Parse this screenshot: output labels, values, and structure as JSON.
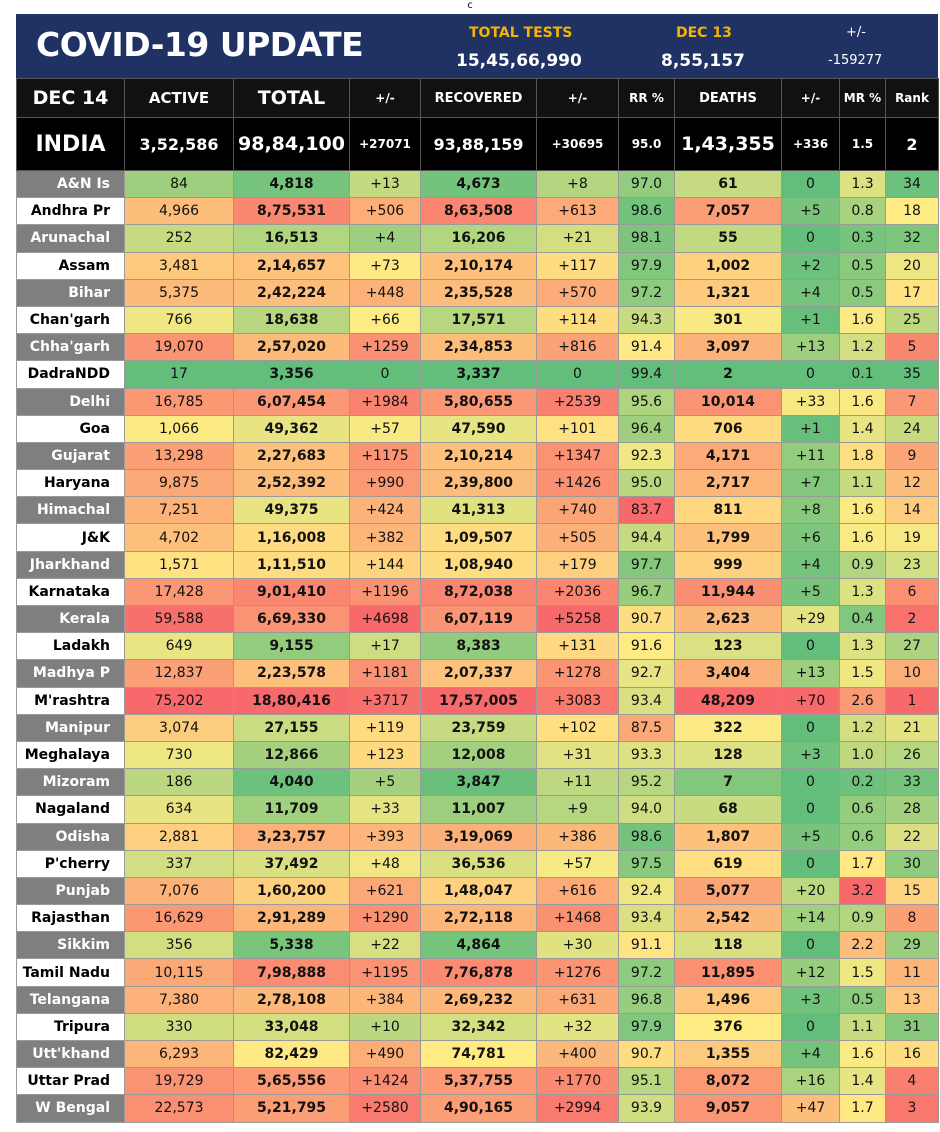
{
  "page_marker": "c",
  "banner": {
    "title": "COVID-19 UPDATE",
    "tests_label": "TOTAL TESTS",
    "tests_value": "15,45,66,990",
    "date_label": "DEC 13",
    "date_value": "8,55,157",
    "change_label": "+/-",
    "change_value": "-159277"
  },
  "header": {
    "date": "DEC 14",
    "active": "ACTIVE",
    "total": "TOTAL",
    "total_change": "+/-",
    "recovered": "RECOVERED",
    "recovered_change": "+/-",
    "rr": "RR %",
    "deaths": "DEATHS",
    "deaths_change": "+/-",
    "mr": "MR %",
    "rank": "Rank"
  },
  "india": {
    "name": "INDIA",
    "active": "3,52,586",
    "total": "98,84,100",
    "total_change": "+27071",
    "recovered": "93,88,159",
    "recovered_change": "+30695",
    "rr": "95.0",
    "deaths": "1,43,355",
    "deaths_change": "+336",
    "mr": "1.5",
    "rank": "2"
  },
  "colors": {
    "banner_bg": "#1f3263",
    "header_bg": "#111111",
    "accent_yellow": "#f4b400",
    "accent_green": "#22b14c",
    "accent_red": "#ff3b1f"
  },
  "states": [
    {
      "name": "A&N Is",
      "active": "84",
      "total": "4,818",
      "tc": "+13",
      "rec": "4,673",
      "rc": "+8",
      "rr": "97.0",
      "deaths": "61",
      "dc": "0",
      "mr": "1.3",
      "rank": "34"
    },
    {
      "name": "Andhra Pr",
      "active": "4,966",
      "total": "8,75,531",
      "tc": "+506",
      "rec": "8,63,508",
      "rc": "+613",
      "rr": "98.6",
      "deaths": "7,057",
      "dc": "+5",
      "mr": "0.8",
      "rank": "18"
    },
    {
      "name": "Arunachal",
      "active": "252",
      "total": "16,513",
      "tc": "+4",
      "rec": "16,206",
      "rc": "+21",
      "rr": "98.1",
      "deaths": "55",
      "dc": "0",
      "mr": "0.3",
      "rank": "32"
    },
    {
      "name": "Assam",
      "active": "3,481",
      "total": "2,14,657",
      "tc": "+73",
      "rec": "2,10,174",
      "rc": "+117",
      "rr": "97.9",
      "deaths": "1,002",
      "dc": "+2",
      "mr": "0.5",
      "rank": "20"
    },
    {
      "name": "Bihar",
      "active": "5,375",
      "total": "2,42,224",
      "tc": "+448",
      "rec": "2,35,528",
      "rc": "+570",
      "rr": "97.2",
      "deaths": "1,321",
      "dc": "+4",
      "mr": "0.5",
      "rank": "17"
    },
    {
      "name": "Chan'garh",
      "active": "766",
      "total": "18,638",
      "tc": "+66",
      "rec": "17,571",
      "rc": "+114",
      "rr": "94.3",
      "deaths": "301",
      "dc": "+1",
      "mr": "1.6",
      "rank": "25"
    },
    {
      "name": "Chha'garh",
      "active": "19,070",
      "total": "2,57,020",
      "tc": "+1259",
      "rec": "2,34,853",
      "rc": "+816",
      "rr": "91.4",
      "deaths": "3,097",
      "dc": "+13",
      "mr": "1.2",
      "rank": "5"
    },
    {
      "name": "DadraNDD",
      "active": "17",
      "total": "3,356",
      "tc": "0",
      "rec": "3,337",
      "rc": "0",
      "rr": "99.4",
      "deaths": "2",
      "dc": "0",
      "mr": "0.1",
      "rank": "35"
    },
    {
      "name": "Delhi",
      "active": "16,785",
      "total": "6,07,454",
      "tc": "+1984",
      "rec": "5,80,655",
      "rc": "+2539",
      "rr": "95.6",
      "deaths": "10,014",
      "dc": "+33",
      "mr": "1.6",
      "rank": "7"
    },
    {
      "name": "Goa",
      "active": "1,066",
      "total": "49,362",
      "tc": "+57",
      "rec": "47,590",
      "rc": "+101",
      "rr": "96.4",
      "deaths": "706",
      "dc": "+1",
      "mr": "1.4",
      "rank": "24"
    },
    {
      "name": "Gujarat",
      "active": "13,298",
      "total": "2,27,683",
      "tc": "+1175",
      "rec": "2,10,214",
      "rc": "+1347",
      "rr": "92.3",
      "deaths": "4,171",
      "dc": "+11",
      "mr": "1.8",
      "rank": "9"
    },
    {
      "name": "Haryana",
      "active": "9,875",
      "total": "2,52,392",
      "tc": "+990",
      "rec": "2,39,800",
      "rc": "+1426",
      "rr": "95.0",
      "deaths": "2,717",
      "dc": "+7",
      "mr": "1.1",
      "rank": "12"
    },
    {
      "name": "Himachal",
      "active": "7,251",
      "total": "49,375",
      "tc": "+424",
      "rec": "41,313",
      "rc": "+740",
      "rr": "83.7",
      "deaths": "811",
      "dc": "+8",
      "mr": "1.6",
      "rank": "14"
    },
    {
      "name": "J&K",
      "active": "4,702",
      "total": "1,16,008",
      "tc": "+382",
      "rec": "1,09,507",
      "rc": "+505",
      "rr": "94.4",
      "deaths": "1,799",
      "dc": "+6",
      "mr": "1.6",
      "rank": "19"
    },
    {
      "name": "Jharkhand",
      "active": "1,571",
      "total": "1,11,510",
      "tc": "+144",
      "rec": "1,08,940",
      "rc": "+179",
      "rr": "97.7",
      "deaths": "999",
      "dc": "+4",
      "mr": "0.9",
      "rank": "23"
    },
    {
      "name": "Karnataka",
      "active": "17,428",
      "total": "9,01,410",
      "tc": "+1196",
      "rec": "8,72,038",
      "rc": "+2036",
      "rr": "96.7",
      "deaths": "11,944",
      "dc": "+5",
      "mr": "1.3",
      "rank": "6"
    },
    {
      "name": "Kerala",
      "active": "59,588",
      "total": "6,69,330",
      "tc": "+4698",
      "rec": "6,07,119",
      "rc": "+5258",
      "rr": "90.7",
      "deaths": "2,623",
      "dc": "+29",
      "mr": "0.4",
      "rank": "2"
    },
    {
      "name": "Ladakh",
      "active": "649",
      "total": "9,155",
      "tc": "+17",
      "rec": "8,383",
      "rc": "+131",
      "rr": "91.6",
      "deaths": "123",
      "dc": "0",
      "mr": "1.3",
      "rank": "27"
    },
    {
      "name": "Madhya P",
      "active": "12,837",
      "total": "2,23,578",
      "tc": "+1181",
      "rec": "2,07,337",
      "rc": "+1278",
      "rr": "92.7",
      "deaths": "3,404",
      "dc": "+13",
      "mr": "1.5",
      "rank": "10"
    },
    {
      "name": "M'rashtra",
      "active": "75,202",
      "total": "18,80,416",
      "tc": "+3717",
      "rec": "17,57,005",
      "rc": "+3083",
      "rr": "93.4",
      "deaths": "48,209",
      "dc": "+70",
      "mr": "2.6",
      "rank": "1"
    },
    {
      "name": "Manipur",
      "active": "3,074",
      "total": "27,155",
      "tc": "+119",
      "rec": "23,759",
      "rc": "+102",
      "rr": "87.5",
      "deaths": "322",
      "dc": "0",
      "mr": "1.2",
      "rank": "21"
    },
    {
      "name": "Meghalaya",
      "active": "730",
      "total": "12,866",
      "tc": "+123",
      "rec": "12,008",
      "rc": "+31",
      "rr": "93.3",
      "deaths": "128",
      "dc": "+3",
      "mr": "1.0",
      "rank": "26"
    },
    {
      "name": "Mizoram",
      "active": "186",
      "total": "4,040",
      "tc": "+5",
      "rec": "3,847",
      "rc": "+11",
      "rr": "95.2",
      "deaths": "7",
      "dc": "0",
      "mr": "0.2",
      "rank": "33"
    },
    {
      "name": "Nagaland",
      "active": "634",
      "total": "11,709",
      "tc": "+33",
      "rec": "11,007",
      "rc": "+9",
      "rr": "94.0",
      "deaths": "68",
      "dc": "0",
      "mr": "0.6",
      "rank": "28"
    },
    {
      "name": "Odisha",
      "active": "2,881",
      "total": "3,23,757",
      "tc": "+393",
      "rec": "3,19,069",
      "rc": "+386",
      "rr": "98.6",
      "deaths": "1,807",
      "dc": "+5",
      "mr": "0.6",
      "rank": "22"
    },
    {
      "name": "P'cherry",
      "active": "337",
      "total": "37,492",
      "tc": "+48",
      "rec": "36,536",
      "rc": "+57",
      "rr": "97.5",
      "deaths": "619",
      "dc": "0",
      "mr": "1.7",
      "rank": "30"
    },
    {
      "name": "Punjab",
      "active": "7,076",
      "total": "1,60,200",
      "tc": "+621",
      "rec": "1,48,047",
      "rc": "+616",
      "rr": "92.4",
      "deaths": "5,077",
      "dc": "+20",
      "mr": "3.2",
      "rank": "15"
    },
    {
      "name": "Rajasthan",
      "active": "16,629",
      "total": "2,91,289",
      "tc": "+1290",
      "rec": "2,72,118",
      "rc": "+1468",
      "rr": "93.4",
      "deaths": "2,542",
      "dc": "+14",
      "mr": "0.9",
      "rank": "8"
    },
    {
      "name": "Sikkim",
      "active": "356",
      "total": "5,338",
      "tc": "+22",
      "rec": "4,864",
      "rc": "+30",
      "rr": "91.1",
      "deaths": "118",
      "dc": "0",
      "mr": "2.2",
      "rank": "29"
    },
    {
      "name": "Tamil Nadu",
      "active": "10,115",
      "total": "7,98,888",
      "tc": "+1195",
      "rec": "7,76,878",
      "rc": "+1276",
      "rr": "97.2",
      "deaths": "11,895",
      "dc": "+12",
      "mr": "1.5",
      "rank": "11"
    },
    {
      "name": "Telangana",
      "active": "7,380",
      "total": "2,78,108",
      "tc": "+384",
      "rec": "2,69,232",
      "rc": "+631",
      "rr": "96.8",
      "deaths": "1,496",
      "dc": "+3",
      "mr": "0.5",
      "rank": "13"
    },
    {
      "name": "Tripura",
      "active": "330",
      "total": "33,048",
      "tc": "+10",
      "rec": "32,342",
      "rc": "+32",
      "rr": "97.9",
      "deaths": "376",
      "dc": "0",
      "mr": "1.1",
      "rank": "31"
    },
    {
      "name": "Utt'khand",
      "active": "6,293",
      "total": "82,429",
      "tc": "+490",
      "rec": "74,781",
      "rc": "+400",
      "rr": "90.7",
      "deaths": "1,355",
      "dc": "+4",
      "mr": "1.6",
      "rank": "16"
    },
    {
      "name": "Uttar Prad",
      "active": "19,729",
      "total": "5,65,556",
      "tc": "+1424",
      "rec": "5,37,755",
      "rc": "+1770",
      "rr": "95.1",
      "deaths": "8,072",
      "dc": "+16",
      "mr": "1.4",
      "rank": "4"
    },
    {
      "name": "W Bengal",
      "active": "22,573",
      "total": "5,21,795",
      "tc": "+2580",
      "rec": "4,90,165",
      "rc": "+2994",
      "rr": "93.9",
      "deaths": "9,057",
      "dc": "+47",
      "mr": "1.7",
      "rank": "3"
    }
  ]
}
